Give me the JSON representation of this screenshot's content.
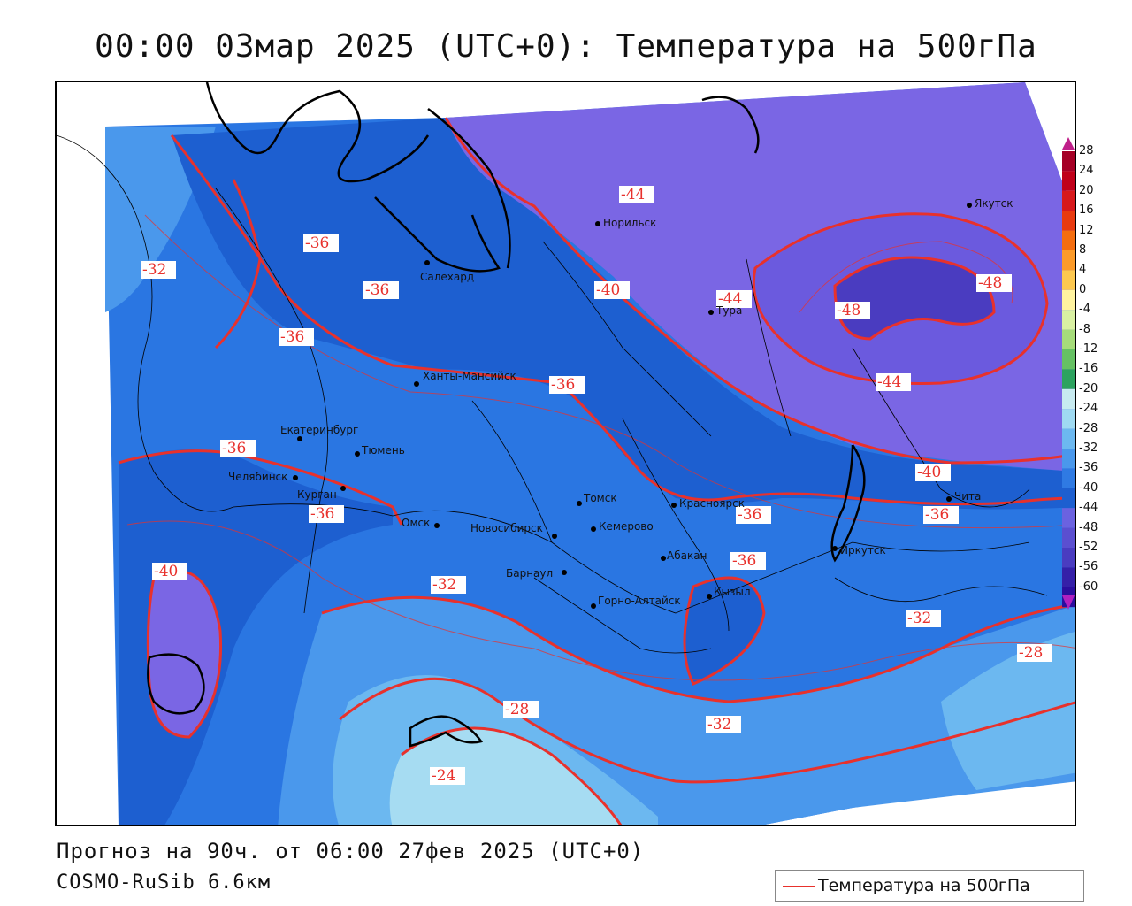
{
  "title": "00:00 03мар 2025 (UTC+0): Температура на 500гПа",
  "footer": {
    "forecast": "Прогноз на 90ч. от 06:00 27фев 2025 (UTC+0)",
    "model": "COSMO-RuSib 6.6км"
  },
  "legend": {
    "label": "Температура на 500гПа",
    "color": "#e8312c"
  },
  "colorbar": {
    "ticks": [
      "28",
      "24",
      "20",
      "16",
      "12",
      "8",
      "4",
      "0",
      "-4",
      "-8",
      "-12",
      "-16",
      "-20",
      "-24",
      "-28",
      "-32",
      "-36",
      "-40",
      "-44",
      "-48",
      "-52",
      "-56",
      "-60"
    ],
    "colors": [
      "#a50026",
      "#c0001a",
      "#d7191c",
      "#e83a10",
      "#f46d10",
      "#fb9a29",
      "#fdc850",
      "#fff3a0",
      "#d9f0a3",
      "#a6dc7a",
      "#66c164",
      "#2ca25f",
      "#c7eaf0",
      "#9fdaf2",
      "#6cb8f0",
      "#4a98ec",
      "#2f7ae3",
      "#1d5fd0",
      "#6b62e0",
      "#5b4fd0",
      "#4a3cc0",
      "#3520a8",
      "#2b0e9e"
    ]
  },
  "contour_labels": [
    {
      "text": "-44"
    },
    {
      "text": "-36"
    },
    {
      "text": "-32"
    },
    {
      "text": "-36"
    },
    {
      "text": "-40"
    },
    {
      "text": "-44"
    },
    {
      "text": "-48"
    },
    {
      "text": "-48"
    },
    {
      "text": "-36"
    },
    {
      "text": "-36"
    },
    {
      "text": "-44"
    },
    {
      "text": "-36"
    },
    {
      "text": "-40"
    },
    {
      "text": "-36"
    },
    {
      "text": "-36"
    },
    {
      "text": "-36"
    },
    {
      "text": "-36"
    },
    {
      "text": "-40"
    },
    {
      "text": "-32"
    },
    {
      "text": "-32"
    },
    {
      "text": "-28"
    },
    {
      "text": "-28"
    },
    {
      "text": "-32"
    },
    {
      "text": "-24"
    }
  ],
  "cities": [
    {
      "name": "Норильск"
    },
    {
      "name": "Якутск"
    },
    {
      "name": "Салехард"
    },
    {
      "name": "Тура"
    },
    {
      "name": "Ханты-Мансийск"
    },
    {
      "name": "Екатеринбург"
    },
    {
      "name": "Тюмень"
    },
    {
      "name": "Челябинск"
    },
    {
      "name": "Курган"
    },
    {
      "name": "Омск"
    },
    {
      "name": "Новосибирск"
    },
    {
      "name": "Томск"
    },
    {
      "name": "Кемерово"
    },
    {
      "name": "Красноярск"
    },
    {
      "name": "Барнаул"
    },
    {
      "name": "Абакан"
    },
    {
      "name": "Горно-Алтайск"
    },
    {
      "name": "Кызыл"
    },
    {
      "name": "Иркутск"
    },
    {
      "name": "Чита"
    }
  ]
}
